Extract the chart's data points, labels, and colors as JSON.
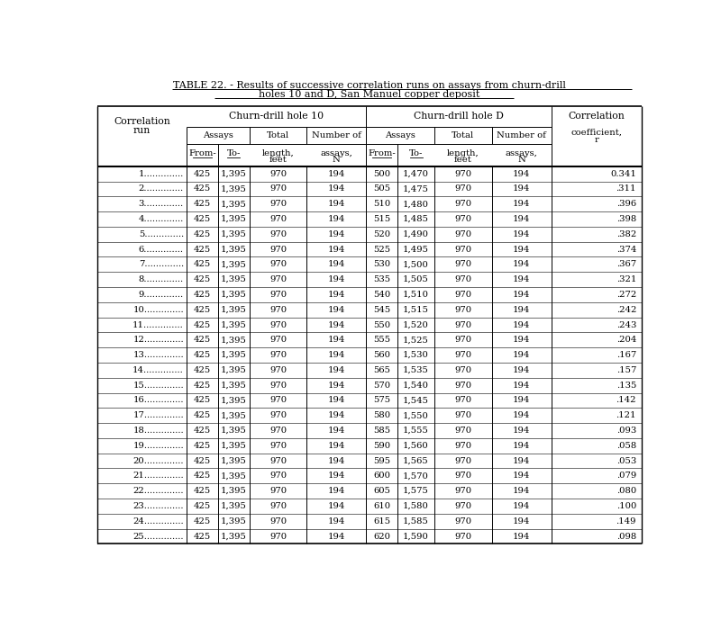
{
  "title_line1": "TABLE 22. - Results of successive correlation runs on assays from churn-drill",
  "title_line2": "holes 10 and D, San Manuel copper deposit",
  "bg_color": "#ffffff",
  "row_labels": [
    "1..............",
    "2..............",
    "3..............",
    "4..............",
    "5..............",
    "6..............",
    "7..............",
    "8..............",
    "9..............",
    "10..............",
    "11..............",
    "12..............",
    "13..............",
    "14..............",
    "15..............",
    "16..............",
    "17..............",
    "18..............",
    "19..............",
    "20..............",
    "21..............",
    "22..............",
    "23..............",
    "24..............",
    "25.............."
  ],
  "data": [
    [
      "425",
      "1,395",
      "970",
      "194",
      "500",
      "1,470",
      "970",
      "194",
      "0.341"
    ],
    [
      "425",
      "1,395",
      "970",
      "194",
      "505",
      "1,475",
      "970",
      "194",
      ".311"
    ],
    [
      "425",
      "1,395",
      "970",
      "194",
      "510",
      "1,480",
      "970",
      "194",
      ".396"
    ],
    [
      "425",
      "1,395",
      "970",
      "194",
      "515",
      "1,485",
      "970",
      "194",
      ".398"
    ],
    [
      "425",
      "1,395",
      "970",
      "194",
      "520",
      "1,490",
      "970",
      "194",
      ".382"
    ],
    [
      "425",
      "1,395",
      "970",
      "194",
      "525",
      "1,495",
      "970",
      "194",
      ".374"
    ],
    [
      "425",
      "1,395",
      "970",
      "194",
      "530",
      "1,500",
      "970",
      "194",
      ".367"
    ],
    [
      "425",
      "1,395",
      "970",
      "194",
      "535",
      "1,505",
      "970",
      "194",
      ".321"
    ],
    [
      "425",
      "1,395",
      "970",
      "194",
      "540",
      "1,510",
      "970",
      "194",
      ".272"
    ],
    [
      "425",
      "1,395",
      "970",
      "194",
      "545",
      "1,515",
      "970",
      "194",
      ".242"
    ],
    [
      "425",
      "1,395",
      "970",
      "194",
      "550",
      "1,520",
      "970",
      "194",
      ".243"
    ],
    [
      "425",
      "1,395",
      "970",
      "194",
      "555",
      "1,525",
      "970",
      "194",
      ".204"
    ],
    [
      "425",
      "1,395",
      "970",
      "194",
      "560",
      "1,530",
      "970",
      "194",
      ".167"
    ],
    [
      "425",
      "1,395",
      "970",
      "194",
      "565",
      "1,535",
      "970",
      "194",
      ".157"
    ],
    [
      "425",
      "1,395",
      "970",
      "194",
      "570",
      "1,540",
      "970",
      "194",
      ".135"
    ],
    [
      "425",
      "1,395",
      "970",
      "194",
      "575",
      "1,545",
      "970",
      "194",
      ".142"
    ],
    [
      "425",
      "1,395",
      "970",
      "194",
      "580",
      "1,550",
      "970",
      "194",
      ".121"
    ],
    [
      "425",
      "1,395",
      "970",
      "194",
      "585",
      "1,555",
      "970",
      "194",
      ".093"
    ],
    [
      "425",
      "1,395",
      "970",
      "194",
      "590",
      "1,560",
      "970",
      "194",
      ".058"
    ],
    [
      "425",
      "1,395",
      "970",
      "194",
      "595",
      "1,565",
      "970",
      "194",
      ".053"
    ],
    [
      "425",
      "1,395",
      "970",
      "194",
      "600",
      "1,570",
      "970",
      "194",
      ".079"
    ],
    [
      "425",
      "1,395",
      "970",
      "194",
      "605",
      "1,575",
      "970",
      "194",
      ".080"
    ],
    [
      "425",
      "1,395",
      "970",
      "194",
      "610",
      "1,580",
      "970",
      "194",
      ".100"
    ],
    [
      "425",
      "1,395",
      "970",
      "194",
      "615",
      "1,585",
      "970",
      "194",
      ".149"
    ],
    [
      "425",
      "1,395",
      "970",
      "194",
      "620",
      "1,590",
      "970",
      "194",
      ".098"
    ]
  ],
  "font_size": 7.2,
  "title_font_size": 8.0,
  "header_font_size": 7.8
}
